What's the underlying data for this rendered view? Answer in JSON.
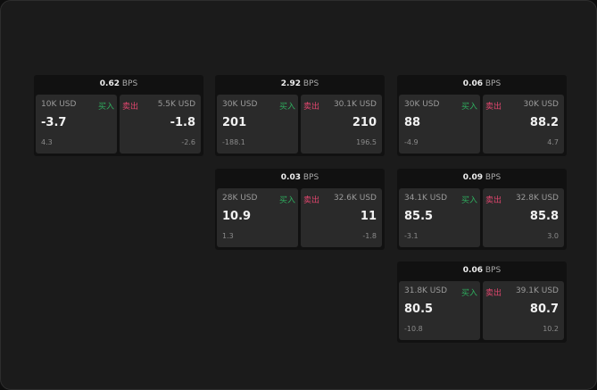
{
  "unit_label": "BPS",
  "buy_label": "买入",
  "sell_label": "卖出",
  "colors": {
    "buy": "#2fae5f",
    "sell": "#e0466e"
  },
  "cards": [
    {
      "spread": "0.62",
      "buy": {
        "size": "10K USD",
        "price": "-3.7",
        "change": "4.3"
      },
      "sell": {
        "size": "5.5K USD",
        "price": "-1.8",
        "change": "-2.6"
      }
    },
    {
      "spread": "2.92",
      "buy": {
        "size": "30K USD",
        "price": "201",
        "change": "-188.1"
      },
      "sell": {
        "size": "30.1K USD",
        "price": "210",
        "change": "196.5"
      }
    },
    {
      "spread": "0.06",
      "buy": {
        "size": "30K USD",
        "price": "88",
        "change": "-4.9"
      },
      "sell": {
        "size": "30K USD",
        "price": "88.2",
        "change": "4.7"
      }
    },
    {
      "spread": "0.03",
      "buy": {
        "size": "28K USD",
        "price": "10.9",
        "change": "1.3"
      },
      "sell": {
        "size": "32.6K USD",
        "price": "11",
        "change": "-1.8"
      }
    },
    {
      "spread": "0.09",
      "buy": {
        "size": "34.1K USD",
        "price": "85.5",
        "change": "-3.1"
      },
      "sell": {
        "size": "32.8K USD",
        "price": "85.8",
        "change": "3.0"
      }
    },
    {
      "spread": "0.06",
      "buy": {
        "size": "31.8K USD",
        "price": "80.5",
        "change": "-10.8"
      },
      "sell": {
        "size": "39.1K USD",
        "price": "80.7",
        "change": "10.2"
      }
    }
  ]
}
